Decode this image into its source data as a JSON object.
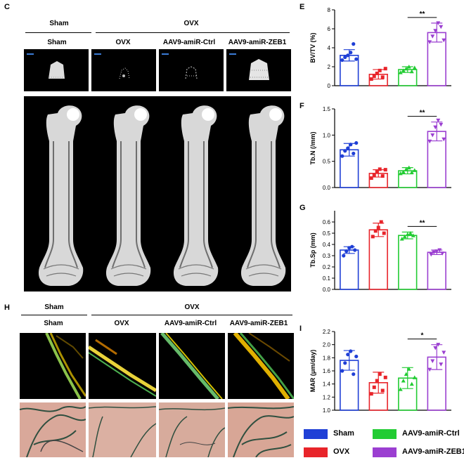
{
  "panels": {
    "C": "C",
    "E": "E",
    "F": "F",
    "G": "G",
    "H": "H",
    "I": "I"
  },
  "group_headers": {
    "sham_top": "Sham",
    "ovx_top": "OVX",
    "sham": "Sham",
    "ovx": "OVX",
    "ctrl": "AAV9-amiR-Ctrl",
    "zeb1": "AAV9-amiR-ZEB1"
  },
  "colors": {
    "sham": "#1f3fd6",
    "ovx": "#e8242a",
    "ctrl": "#22cc33",
    "zeb1": "#9b3fd1"
  },
  "legend": {
    "sham": "Sham",
    "ovx": "OVX",
    "ctrl": "AAV9-amiR-Ctrl",
    "zeb1": "AAV9-amiR-ZEB1"
  },
  "chart_data": [
    {
      "id": "E",
      "type": "bar",
      "categories": [
        "Sham",
        "OVX",
        "AAV9-amiR-Ctrl",
        "AAV9-amiR-ZEB1"
      ],
      "values": [
        3.2,
        1.2,
        1.7,
        5.6
      ],
      "errors": [
        0.6,
        0.5,
        0.3,
        1.0
      ],
      "points": [
        [
          2.7,
          3.0,
          3.2,
          3.5,
          4.4,
          2.8
        ],
        [
          0.7,
          1.0,
          1.3,
          1.6,
          0.9,
          1.8
        ],
        [
          1.4,
          1.6,
          1.8,
          2.0,
          1.5,
          1.9
        ],
        [
          4.6,
          5.2,
          5.8,
          6.6,
          6.2,
          4.8
        ]
      ],
      "ylabel": "BV/TV (%)",
      "ylim": [
        0,
        8
      ],
      "yticks": [
        0,
        2,
        4,
        6,
        8
      ],
      "ytick_labels": [
        "0",
        "2",
        "4",
        "6",
        "8"
      ],
      "sig": {
        "from": 2,
        "to": 3,
        "label": "**"
      }
    },
    {
      "id": "F",
      "type": "bar",
      "categories": [
        "Sham",
        "OVX",
        "AAV9-amiR-Ctrl",
        "AAV9-amiR-ZEB1"
      ],
      "values": [
        0.72,
        0.27,
        0.32,
        1.07
      ],
      "errors": [
        0.12,
        0.07,
        0.06,
        0.18
      ],
      "points": [
        [
          0.6,
          0.7,
          0.75,
          0.82,
          0.65,
          0.85
        ],
        [
          0.18,
          0.24,
          0.3,
          0.35,
          0.22,
          0.34
        ],
        [
          0.27,
          0.3,
          0.35,
          0.38,
          0.29,
          0.33
        ],
        [
          0.88,
          1.0,
          1.15,
          1.28,
          1.2,
          0.92
        ]
      ],
      "ylabel": "Tb.N (/mm)",
      "ylim": [
        0,
        1.5
      ],
      "yticks": [
        0,
        0.5,
        1.0,
        1.5
      ],
      "ytick_labels": [
        "0.0",
        "0.5",
        "1.0",
        "1.5"
      ],
      "sig": {
        "from": 2,
        "to": 3,
        "label": "**"
      }
    },
    {
      "id": "G",
      "type": "bar",
      "categories": [
        "Sham",
        "OVX",
        "AAV9-amiR-Ctrl",
        "AAV9-amiR-ZEB1"
      ],
      "values": [
        0.35,
        0.53,
        0.48,
        0.33
      ],
      "errors": [
        0.03,
        0.06,
        0.03,
        0.02
      ],
      "points": [
        [
          0.3,
          0.34,
          0.37,
          0.38,
          0.35
        ],
        [
          0.47,
          0.52,
          0.55,
          0.6,
          0.5
        ],
        [
          0.45,
          0.47,
          0.49,
          0.5,
          0.48
        ],
        [
          0.31,
          0.33,
          0.34,
          0.35,
          0.32
        ]
      ],
      "ylabel": "Tb.Sp (mm)",
      "ylim": [
        0,
        0.7
      ],
      "yticks": [
        0,
        0.1,
        0.2,
        0.3,
        0.4,
        0.5,
        0.6
      ],
      "ytick_labels": [
        "0.0",
        "0.1",
        "0.2",
        "0.3",
        "0.4",
        "0.5",
        "0.6"
      ],
      "sig": {
        "from": 2,
        "to": 3,
        "label": "**"
      }
    },
    {
      "id": "I",
      "type": "bar",
      "categories": [
        "Sham",
        "OVX",
        "AAV9-amiR-Ctrl",
        "AAV9-amiR-ZEB1"
      ],
      "values": [
        1.76,
        1.42,
        1.49,
        1.81
      ],
      "errors": [
        0.15,
        0.16,
        0.16,
        0.19
      ],
      "points": [
        [
          1.6,
          1.72,
          1.85,
          1.9,
          1.55,
          1.82
        ],
        [
          1.25,
          1.35,
          1.45,
          1.55,
          1.3,
          1.5
        ],
        [
          1.32,
          1.45,
          1.55,
          1.63,
          1.4,
          1.5
        ],
        [
          1.62,
          1.75,
          1.95,
          2.0,
          1.7,
          1.88
        ]
      ],
      "ylabel": "MAR (μm/day)",
      "ylim": [
        1.0,
        2.2
      ],
      "yticks": [
        1.0,
        1.2,
        1.4,
        1.6,
        1.8,
        2.0,
        2.2
      ],
      "ytick_labels": [
        "1.0",
        "1.2",
        "1.4",
        "1.6",
        "1.8",
        "2.0",
        "2.2"
      ],
      "sig": {
        "from": 2,
        "to": 3,
        "label": "*"
      }
    }
  ]
}
